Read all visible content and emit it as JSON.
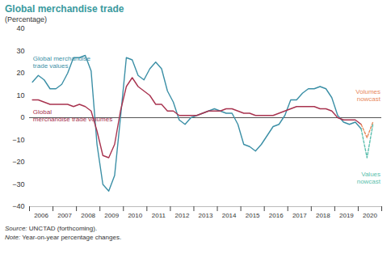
{
  "chart_data": {
    "type": "line",
    "title": "Global merchandise trade",
    "subtitle": "(Percentage)",
    "source": "Source: UNCTAD (forthcoming).",
    "note": "Note: Year-on-year percentage changes.",
    "grid": false,
    "legend": "none",
    "x": [
      2006.125,
      2006.375,
      2006.625,
      2006.875,
      2007.125,
      2007.375,
      2007.625,
      2007.875,
      2008.125,
      2008.375,
      2008.625,
      2008.875,
      2009.125,
      2009.375,
      2009.625,
      2009.875,
      2010.125,
      2010.375,
      2010.625,
      2010.875,
      2011.125,
      2011.375,
      2011.625,
      2011.875,
      2012.125,
      2012.375,
      2012.625,
      2012.875,
      2013.125,
      2013.375,
      2013.625,
      2013.875,
      2014.125,
      2014.375,
      2014.625,
      2014.875,
      2015.125,
      2015.375,
      2015.625,
      2015.875,
      2016.125,
      2016.375,
      2016.625,
      2016.875,
      2017.125,
      2017.375,
      2017.625,
      2017.875,
      2018.125,
      2018.375,
      2018.625,
      2018.875,
      2019.125,
      2019.375,
      2019.625,
      2019.875,
      2020.125,
      2020.375,
      2020.625
    ],
    "xlim": [
      2006,
      2021
    ],
    "xticks": [
      {
        "value": 2006.5,
        "label": "2006"
      },
      {
        "value": 2007.5,
        "label": "2007"
      },
      {
        "value": 2008.5,
        "label": "2008"
      },
      {
        "value": 2009.5,
        "label": "2009"
      },
      {
        "value": 2010.5,
        "label": "2010"
      },
      {
        "value": 2011.5,
        "label": "2011"
      },
      {
        "value": 2012.5,
        "label": "2012"
      },
      {
        "value": 2013.5,
        "label": "2013"
      },
      {
        "value": 2014.5,
        "label": "2014"
      },
      {
        "value": 2015.5,
        "label": "2015"
      },
      {
        "value": 2016.5,
        "label": "2016"
      },
      {
        "value": 2017.5,
        "label": "2017"
      },
      {
        "value": 2018.5,
        "label": "2018"
      },
      {
        "value": 2019.5,
        "label": "2019"
      },
      {
        "value": 2020.5,
        "label": "2020"
      }
    ],
    "ylim": [
      -40,
      40
    ],
    "yticks": [
      -40,
      -30,
      -20,
      -10,
      0,
      10,
      20,
      30,
      40
    ],
    "series": [
      {
        "name": "Global merchandise\ntrade values",
        "color": "#3b8fa6",
        "line_style": "solid",
        "values": [
          16,
          19,
          17,
          13,
          13,
          15,
          20,
          27,
          27,
          28,
          21,
          -12,
          -30,
          -33,
          -26,
          0,
          27,
          26,
          19,
          17,
          22,
          25,
          22,
          12,
          7,
          -1,
          -3,
          0,
          1,
          2,
          3,
          4,
          3,
          2,
          2,
          -3,
          -12,
          -13,
          -15,
          -12,
          -8,
          -4,
          -3,
          1,
          8,
          8,
          11,
          13,
          13,
          14,
          13,
          9,
          1,
          -2,
          -3,
          -2,
          -5,
          null,
          null
        ]
      },
      {
        "name": "Global\nmerchandise trade volumes",
        "color": "#a8334f",
        "line_style": "solid",
        "values": [
          8,
          8,
          7,
          6,
          6,
          6,
          6,
          5,
          6,
          5,
          3,
          -6,
          -17,
          -18,
          -12,
          3,
          14,
          18,
          14,
          12,
          10,
          6,
          6,
          3,
          3,
          1,
          1,
          1,
          1,
          2,
          3,
          3,
          3,
          4,
          4,
          3,
          2,
          2,
          1,
          1,
          1,
          1,
          2,
          3,
          4,
          5,
          5,
          5,
          5,
          4,
          4,
          3,
          0,
          -1,
          -1,
          -1,
          -3,
          null,
          null
        ]
      },
      {
        "name": "Volumes\nnowcast",
        "color": "#e8895c",
        "line_style": "dashed",
        "values": [
          null,
          null,
          null,
          null,
          null,
          null,
          null,
          null,
          null,
          null,
          null,
          null,
          null,
          null,
          null,
          null,
          null,
          null,
          null,
          null,
          null,
          null,
          null,
          null,
          null,
          null,
          null,
          null,
          null,
          null,
          null,
          null,
          null,
          null,
          null,
          null,
          null,
          null,
          null,
          null,
          null,
          null,
          null,
          null,
          null,
          null,
          null,
          null,
          null,
          null,
          null,
          null,
          null,
          null,
          null,
          null,
          -3,
          -9,
          -2
        ]
      },
      {
        "name": "Values\nnowcast",
        "color": "#5cbfae",
        "line_style": "dashed",
        "values": [
          null,
          null,
          null,
          null,
          null,
          null,
          null,
          null,
          null,
          null,
          null,
          null,
          null,
          null,
          null,
          null,
          null,
          null,
          null,
          null,
          null,
          null,
          null,
          null,
          null,
          null,
          null,
          null,
          null,
          null,
          null,
          null,
          null,
          null,
          null,
          null,
          null,
          null,
          null,
          null,
          null,
          null,
          null,
          null,
          null,
          null,
          null,
          null,
          null,
          null,
          null,
          null,
          null,
          null,
          null,
          null,
          -5,
          -18,
          -3
        ]
      }
    ]
  }
}
